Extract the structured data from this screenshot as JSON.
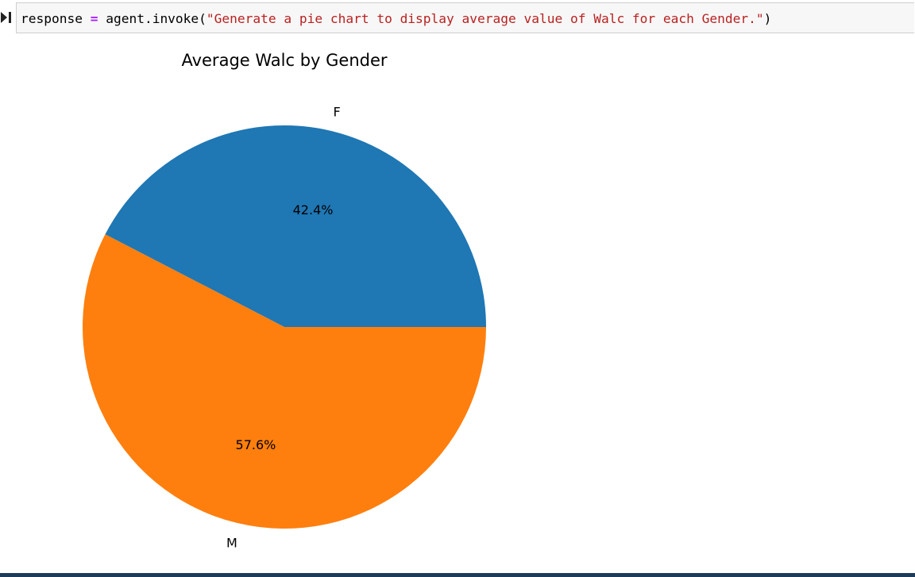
{
  "cell": {
    "code": {
      "var": "response",
      "op": "=",
      "call": "agent.invoke(",
      "arg": "\"Generate a pie chart to display average value of Walc for each Gender.\"",
      "close": ")"
    }
  },
  "colors": {
    "series_1": "#1f77b4",
    "series_2": "#ff7f0e"
  },
  "chart_data": {
    "type": "pie",
    "title": "Average Walc by Gender",
    "categories": [
      "F",
      "M"
    ],
    "values": [
      42.4,
      57.6
    ],
    "value_labels": [
      "42.4%",
      "57.6%"
    ],
    "colors": [
      "#1f77b4",
      "#ff7f0e"
    ],
    "start_angle_deg": 0,
    "direction": "counterclockwise"
  }
}
